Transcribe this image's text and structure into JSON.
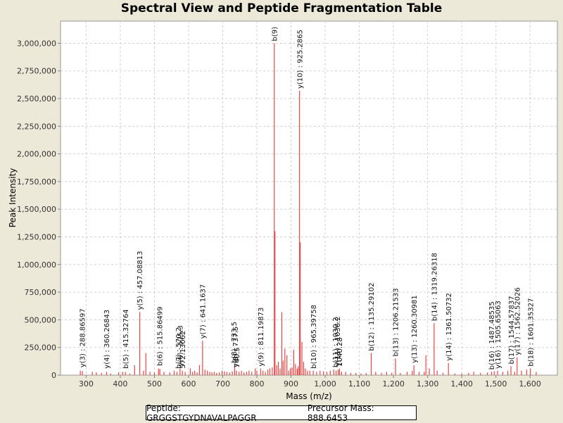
{
  "footer": {
    "peptide": "Peptide: GRGGSTGYDNAVALPAGGR",
    "precursor": "Precursor Mass: 888.6453"
  },
  "chart_data": {
    "type": "bar",
    "title": "Spectral View and Peptide Fragmentation Table",
    "xlabel": "Mass (m/z)",
    "ylabel": "Peak Intensity",
    "xlim": [
      225,
      1680
    ],
    "ylim": [
      0,
      3200000
    ],
    "xticks": [
      300,
      400,
      500,
      600,
      700,
      800,
      900,
      1000,
      1100,
      1200,
      1300,
      1400,
      1500,
      1600
    ],
    "xtick_labels": [
      "300",
      "400",
      "500",
      "600",
      "700",
      "800",
      "900",
      "1,000",
      "1,100",
      "1,200",
      "1,300",
      "1,400",
      "1,500",
      "1,600"
    ],
    "yticks": [
      0,
      250000,
      500000,
      750000,
      1000000,
      1250000,
      1500000,
      1750000,
      2000000,
      2250000,
      2500000,
      2750000,
      3000000
    ],
    "ytick_labels": [
      "0",
      "250,000",
      "500,000",
      "750,000",
      "1,000,000",
      "1,250,000",
      "1,500,000",
      "1,750,000",
      "2,000,000",
      "2,250,000",
      "2,500,000",
      "2,750,000",
      "3,000,000"
    ],
    "grid": true,
    "color": "#ee4444",
    "peaks": [
      [
        283,
        40000
      ],
      [
        289,
        35000
      ],
      [
        318,
        30000
      ],
      [
        330,
        25000
      ],
      [
        345,
        20000
      ],
      [
        360,
        30000
      ],
      [
        372,
        15000
      ],
      [
        395,
        25000
      ],
      [
        407,
        30000
      ],
      [
        415,
        30000
      ],
      [
        428,
        15000
      ],
      [
        442,
        90000
      ],
      [
        457,
        570000
      ],
      [
        468,
        40000
      ],
      [
        475,
        200000
      ],
      [
        487,
        30000
      ],
      [
        500,
        25000
      ],
      [
        512,
        60000
      ],
      [
        516,
        55000
      ],
      [
        528,
        30000
      ],
      [
        545,
        25000
      ],
      [
        558,
        40000
      ],
      [
        566,
        30000
      ],
      [
        575,
        60000
      ],
      [
        582,
        40000
      ],
      [
        590,
        30000
      ],
      [
        605,
        60000
      ],
      [
        612,
        30000
      ],
      [
        618,
        40000
      ],
      [
        625,
        25000
      ],
      [
        632,
        90000
      ],
      [
        641,
        310000
      ],
      [
        648,
        50000
      ],
      [
        655,
        40000
      ],
      [
        662,
        30000
      ],
      [
        668,
        25000
      ],
      [
        675,
        30000
      ],
      [
        682,
        20000
      ],
      [
        690,
        25000
      ],
      [
        698,
        40000
      ],
      [
        705,
        35000
      ],
      [
        712,
        30000
      ],
      [
        720,
        25000
      ],
      [
        728,
        35000
      ],
      [
        735,
        90000
      ],
      [
        740,
        40000
      ],
      [
        748,
        30000
      ],
      [
        755,
        40000
      ],
      [
        762,
        25000
      ],
      [
        770,
        30000
      ],
      [
        777,
        40000
      ],
      [
        785,
        30000
      ],
      [
        795,
        60000
      ],
      [
        800,
        40000
      ],
      [
        811,
        60000
      ],
      [
        818,
        40000
      ],
      [
        825,
        30000
      ],
      [
        832,
        50000
      ],
      [
        838,
        60000
      ],
      [
        845,
        70000
      ],
      [
        851,
        3000000
      ],
      [
        853,
        1300000
      ],
      [
        858,
        90000
      ],
      [
        863,
        120000
      ],
      [
        868,
        60000
      ],
      [
        873,
        570000
      ],
      [
        877,
        130000
      ],
      [
        882,
        240000
      ],
      [
        888,
        180000
      ],
      [
        893,
        40000
      ],
      [
        898,
        60000
      ],
      [
        903,
        70000
      ],
      [
        908,
        230000
      ],
      [
        913,
        100000
      ],
      [
        918,
        60000
      ],
      [
        921,
        80000
      ],
      [
        925,
        2570000
      ],
      [
        927,
        1200000
      ],
      [
        932,
        300000
      ],
      [
        937,
        120000
      ],
      [
        942,
        60000
      ],
      [
        948,
        40000
      ],
      [
        955,
        40000
      ],
      [
        965,
        40000
      ],
      [
        975,
        30000
      ],
      [
        985,
        40000
      ],
      [
        995,
        35000
      ],
      [
        1005,
        30000
      ],
      [
        1015,
        40000
      ],
      [
        1025,
        50000
      ],
      [
        1032,
        40000
      ],
      [
        1038,
        50000
      ],
      [
        1042,
        60000
      ],
      [
        1048,
        30000
      ],
      [
        1060,
        30000
      ],
      [
        1075,
        20000
      ],
      [
        1090,
        20000
      ],
      [
        1105,
        15000
      ],
      [
        1120,
        20000
      ],
      [
        1135,
        200000
      ],
      [
        1148,
        30000
      ],
      [
        1165,
        20000
      ],
      [
        1180,
        30000
      ],
      [
        1195,
        20000
      ],
      [
        1206,
        150000
      ],
      [
        1220,
        20000
      ],
      [
        1240,
        30000
      ],
      [
        1255,
        40000
      ],
      [
        1260,
        90000
      ],
      [
        1275,
        30000
      ],
      [
        1290,
        30000
      ],
      [
        1295,
        180000
      ],
      [
        1305,
        60000
      ],
      [
        1319,
        470000
      ],
      [
        1328,
        40000
      ],
      [
        1345,
        20000
      ],
      [
        1361,
        110000
      ],
      [
        1380,
        15000
      ],
      [
        1400,
        15000
      ],
      [
        1420,
        20000
      ],
      [
        1435,
        30000
      ],
      [
        1455,
        20000
      ],
      [
        1475,
        25000
      ],
      [
        1487,
        30000
      ],
      [
        1495,
        35000
      ],
      [
        1505,
        40000
      ],
      [
        1520,
        30000
      ],
      [
        1535,
        40000
      ],
      [
        1544,
        80000
      ],
      [
        1555,
        30000
      ],
      [
        1562,
        160000
      ],
      [
        1575,
        40000
      ],
      [
        1590,
        50000
      ],
      [
        1601,
        60000
      ],
      [
        1618,
        30000
      ]
    ],
    "annotations": [
      {
        "x": 288.86597,
        "y": 50000,
        "text": "y(3) : 288.86597"
      },
      {
        "x": 360.26843,
        "y": 40000,
        "text": "y(4) : 360.26843"
      },
      {
        "x": 415.32764,
        "y": 40000,
        "text": "b(5) : 415.32764"
      },
      {
        "x": 457.08813,
        "y": 570000,
        "text": "y(5) : 457.08813"
      },
      {
        "x": 515.86499,
        "y": 65000,
        "text": "b(6) : 515.86499"
      },
      {
        "x": 570.2,
        "y": 40000,
        "text": "b(7) : 570.2"
      },
      {
        "x": 575.3,
        "y": 60000,
        "text": "y(6) : 575.3"
      },
      {
        "x": 582.1,
        "y": 40000,
        "text": "572.13062"
      },
      {
        "x": 641.1637,
        "y": 310000,
        "text": "y(7) : 641.1637"
      },
      {
        "x": 733.5,
        "y": 90000,
        "text": "b(8) : 733.5"
      },
      {
        "x": 737.5,
        "y": 50000,
        "text": "y(8) : 737.5"
      },
      {
        "x": 741.5,
        "y": 50000,
        "text": "740.5"
      },
      {
        "x": 811.19873,
        "y": 60000,
        "text": "y(9) : 811.19873"
      },
      {
        "x": 851.5,
        "y": 3000000,
        "text": "b(9)"
      },
      {
        "x": 925.2865,
        "y": 2570000,
        "text": "y(10) : 925.2865"
      },
      {
        "x": 965.39758,
        "y": 40000,
        "text": "b(10) : 965.39758"
      },
      {
        "x": 1030.2,
        "y": 50000,
        "text": "b(11) : 1030.2"
      },
      {
        "x": 1036.2,
        "y": 60000,
        "text": "y(11) : 1036.2"
      },
      {
        "x": 1042.2,
        "y": 60000,
        "text": "1040.28"
      },
      {
        "x": 1135.29102,
        "y": 200000,
        "text": "b(12) : 1135.29102"
      },
      {
        "x": 1206.21533,
        "y": 150000,
        "text": "b(13) : 1206.21533"
      },
      {
        "x": 1260.30981,
        "y": 90000,
        "text": "y(13) : 1260.30981"
      },
      {
        "x": 1319.26318,
        "y": 470000,
        "text": "b(14) : 1319.26318"
      },
      {
        "x": 1361.50732,
        "y": 110000,
        "text": "y(14) : 1361.50732"
      },
      {
        "x": 1487.48535,
        "y": 30000,
        "text": "b(16) : 1487.48535"
      },
      {
        "x": 1505.65063,
        "y": 40000,
        "text": "y(16) : 1505.65063"
      },
      {
        "x": 1544.57837,
        "y": 80000,
        "text": "b(17) : 1544.57837"
      },
      {
        "x": 1562.52026,
        "y": 160000,
        "text": "y(17) : 1562.52026"
      },
      {
        "x": 1601.35327,
        "y": 60000,
        "text": "b(18) : 1601.35327"
      }
    ]
  }
}
